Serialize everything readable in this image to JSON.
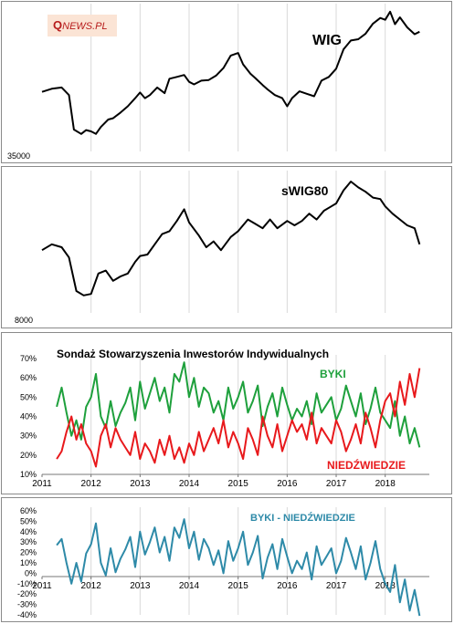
{
  "logo": {
    "q": "Q",
    "rest": "NEWS.PL"
  },
  "chart_data": [
    {
      "type": "line",
      "title": "WIG",
      "ymin_label": "35000",
      "x_range": [
        2011,
        2018.9
      ],
      "series": [
        {
          "name": "WIG",
          "color": "#000000",
          "x": [
            2011.0,
            2011.2,
            2011.4,
            2011.55,
            2011.65,
            2011.8,
            2011.9,
            2012.0,
            2012.1,
            2012.2,
            2012.35,
            2012.45,
            2012.6,
            2012.75,
            2012.9,
            2013.0,
            2013.1,
            2013.2,
            2013.35,
            2013.5,
            2013.6,
            2013.75,
            2013.9,
            2014.0,
            2014.1,
            2014.25,
            2014.4,
            2014.55,
            2014.7,
            2014.85,
            2015.0,
            2015.1,
            2015.25,
            2015.35,
            2015.5,
            2015.6,
            2015.75,
            2015.9,
            2016.0,
            2016.1,
            2016.25,
            2016.4,
            2016.55,
            2016.7,
            2016.85,
            2017.0,
            2017.15,
            2017.3,
            2017.45,
            2017.6,
            2017.75,
            2017.9,
            2018.0,
            2018.1,
            2018.2,
            2018.3,
            2018.45,
            2018.6,
            2018.7
          ],
          "values": [
            44500,
            45000,
            45200,
            44000,
            38500,
            37800,
            38400,
            38200,
            37800,
            38900,
            40100,
            40300,
            41200,
            42200,
            43500,
            44400,
            43500,
            44000,
            45200,
            44300,
            46600,
            46900,
            47200,
            46100,
            45700,
            46300,
            46400,
            47100,
            48300,
            50300,
            50700,
            48900,
            47400,
            46700,
            45600,
            44900,
            44000,
            43500,
            42200,
            43500,
            44600,
            44200,
            43800,
            46300,
            46900,
            48200,
            51300,
            52700,
            52900,
            53800,
            55400,
            56300,
            56000,
            57300,
            55300,
            56400,
            54800,
            53700,
            54100
          ]
        }
      ],
      "ylim": [
        35000,
        58000
      ]
    },
    {
      "type": "line",
      "title": "sWIG80",
      "ymin_label": "8000",
      "x_range": [
        2011,
        2018.9
      ],
      "series": [
        {
          "name": "sWIG80",
          "color": "#000000",
          "x": [
            2011.0,
            2011.2,
            2011.4,
            2011.55,
            2011.7,
            2011.85,
            2012.0,
            2012.15,
            2012.3,
            2012.45,
            2012.6,
            2012.75,
            2012.9,
            2013.0,
            2013.15,
            2013.3,
            2013.45,
            2013.6,
            2013.75,
            2013.9,
            2014.0,
            2014.2,
            2014.35,
            2014.5,
            2014.65,
            2014.85,
            2015.0,
            2015.2,
            2015.35,
            2015.5,
            2015.65,
            2015.8,
            2016.0,
            2016.15,
            2016.3,
            2016.45,
            2016.6,
            2016.75,
            2016.9,
            2017.0,
            2017.15,
            2017.3,
            2017.45,
            2017.6,
            2017.75,
            2017.9,
            2018.0,
            2018.15,
            2018.3,
            2018.45,
            2018.6,
            2018.7
          ],
          "values": [
            12300,
            12700,
            12500,
            11800,
            9500,
            9200,
            9300,
            10700,
            10900,
            10200,
            10500,
            10700,
            11500,
            11900,
            12000,
            12700,
            13400,
            13600,
            14300,
            15100,
            14200,
            13300,
            12500,
            12900,
            12300,
            13200,
            13600,
            14400,
            14100,
            13800,
            14400,
            13800,
            14300,
            14000,
            14300,
            14800,
            14400,
            15000,
            15300,
            15500,
            16400,
            17000,
            16600,
            16300,
            15900,
            15800,
            15300,
            14800,
            14400,
            14000,
            13800,
            12700
          ]
        }
      ],
      "ylim": [
        8000,
        17500
      ]
    },
    {
      "type": "line",
      "title": "Sondaż Stowarzyszenia Inwestorów Indywidualnych",
      "y_ticks": [
        "70%",
        "60%",
        "50%",
        "40%",
        "30%",
        "20%",
        "10%"
      ],
      "x_ticks": [
        "2011",
        "2012",
        "2013",
        "2014",
        "2015",
        "2016",
        "2017",
        "2018"
      ],
      "ylim": [
        10,
        70
      ],
      "x_range": [
        2011,
        2018.9
      ],
      "series": [
        {
          "name": "BYKI",
          "color": "#1ea03c",
          "x": [
            2011.3,
            2011.4,
            2011.5,
            2011.6,
            2011.7,
            2011.8,
            2011.9,
            2012.0,
            2012.1,
            2012.2,
            2012.3,
            2012.4,
            2012.5,
            2012.6,
            2012.7,
            2012.8,
            2012.9,
            2013.0,
            2013.1,
            2013.2,
            2013.3,
            2013.4,
            2013.5,
            2013.6,
            2013.7,
            2013.8,
            2013.9,
            2014.0,
            2014.1,
            2014.2,
            2014.3,
            2014.4,
            2014.5,
            2014.6,
            2014.7,
            2014.8,
            2014.9,
            2015.0,
            2015.1,
            2015.2,
            2015.3,
            2015.4,
            2015.5,
            2015.6,
            2015.7,
            2015.8,
            2015.9,
            2016.0,
            2016.1,
            2016.2,
            2016.3,
            2016.4,
            2016.5,
            2016.6,
            2016.7,
            2016.8,
            2016.9,
            2017.0,
            2017.1,
            2017.2,
            2017.3,
            2017.4,
            2017.5,
            2017.6,
            2017.7,
            2017.8,
            2017.9,
            2018.0,
            2018.1,
            2018.2,
            2018.3,
            2018.4,
            2018.5,
            2018.6,
            2018.7
          ],
          "values": [
            45,
            55,
            42,
            30,
            38,
            28,
            45,
            50,
            62,
            40,
            34,
            48,
            35,
            42,
            47,
            55,
            38,
            58,
            44,
            52,
            60,
            48,
            55,
            42,
            62,
            58,
            68,
            50,
            60,
            45,
            55,
            52,
            42,
            48,
            38,
            55,
            44,
            50,
            58,
            42,
            48,
            56,
            35,
            45,
            52,
            40,
            55,
            46,
            38,
            44,
            40,
            48,
            36,
            52,
            42,
            46,
            50,
            38,
            44,
            56,
            48,
            40,
            52,
            36,
            44,
            55,
            42,
            38,
            34,
            48,
            30,
            40,
            26,
            34,
            24
          ]
        },
        {
          "name": "NIEDŹWIEDZIE",
          "color": "#e8191c",
          "x": [
            2011.3,
            2011.4,
            2011.5,
            2011.6,
            2011.7,
            2011.8,
            2011.9,
            2012.0,
            2012.1,
            2012.2,
            2012.3,
            2012.4,
            2012.5,
            2012.6,
            2012.7,
            2012.8,
            2012.9,
            2013.0,
            2013.1,
            2013.2,
            2013.3,
            2013.4,
            2013.5,
            2013.6,
            2013.7,
            2013.8,
            2013.9,
            2014.0,
            2014.1,
            2014.2,
            2014.3,
            2014.4,
            2014.5,
            2014.6,
            2014.7,
            2014.8,
            2014.9,
            2015.0,
            2015.1,
            2015.2,
            2015.3,
            2015.4,
            2015.5,
            2015.6,
            2015.7,
            2015.8,
            2015.9,
            2016.0,
            2016.1,
            2016.2,
            2016.3,
            2016.4,
            2016.5,
            2016.6,
            2016.7,
            2016.8,
            2016.9,
            2017.0,
            2017.1,
            2017.2,
            2017.3,
            2017.4,
            2017.5,
            2017.6,
            2017.7,
            2017.8,
            2017.9,
            2018.0,
            2018.1,
            2018.2,
            2018.3,
            2018.4,
            2018.5,
            2018.6,
            2018.7
          ],
          "values": [
            18,
            22,
            32,
            40,
            28,
            36,
            26,
            22,
            14,
            30,
            36,
            24,
            34,
            28,
            24,
            20,
            32,
            18,
            26,
            22,
            16,
            28,
            20,
            30,
            18,
            24,
            16,
            26,
            20,
            32,
            22,
            28,
            34,
            26,
            38,
            24,
            32,
            26,
            18,
            34,
            28,
            20,
            40,
            30,
            24,
            36,
            22,
            30,
            38,
            32,
            36,
            28,
            42,
            26,
            34,
            30,
            26,
            38,
            32,
            22,
            28,
            36,
            26,
            42,
            34,
            24,
            38,
            48,
            52,
            40,
            58,
            46,
            62,
            50,
            65
          ]
        }
      ]
    },
    {
      "type": "line",
      "title": "BYKI - NIEDŹWIEDZIE",
      "y_ticks": [
        "60%",
        "50%",
        "40%",
        "30%",
        "20%",
        "10%",
        "0%",
        "-10%",
        "-20%",
        "-30%",
        "-40%"
      ],
      "x_ticks": [
        "2011",
        "2012",
        "2013",
        "2014",
        "2015",
        "2016",
        "2017",
        "2018"
      ],
      "ylim": [
        -40,
        60
      ],
      "x_range": [
        2011,
        2018.9
      ],
      "series": [
        {
          "name": "BYKI - NIEDŹWIEDZIE",
          "color": "#2e8aa8",
          "x": [
            2011.3,
            2011.4,
            2011.5,
            2011.6,
            2011.7,
            2011.8,
            2011.9,
            2012.0,
            2012.1,
            2012.2,
            2012.3,
            2012.4,
            2012.5,
            2012.6,
            2012.7,
            2012.8,
            2012.9,
            2013.0,
            2013.1,
            2013.2,
            2013.3,
            2013.4,
            2013.5,
            2013.6,
            2013.7,
            2013.8,
            2013.9,
            2014.0,
            2014.1,
            2014.2,
            2014.3,
            2014.4,
            2014.5,
            2014.6,
            2014.7,
            2014.8,
            2014.9,
            2015.0,
            2015.1,
            2015.2,
            2015.3,
            2015.4,
            2015.5,
            2015.6,
            2015.7,
            2015.8,
            2015.9,
            2016.0,
            2016.1,
            2016.2,
            2016.3,
            2016.4,
            2016.5,
            2016.6,
            2016.7,
            2016.8,
            2016.9,
            2017.0,
            2017.1,
            2017.2,
            2017.3,
            2017.4,
            2017.5,
            2017.6,
            2017.7,
            2017.8,
            2017.9,
            2018.0,
            2018.1,
            2018.2,
            2018.3,
            2018.4,
            2018.5,
            2018.6,
            2018.7
          ],
          "values": [
            27,
            33,
            10,
            -10,
            10,
            -8,
            19,
            28,
            48,
            10,
            -2,
            24,
            1,
            14,
            23,
            35,
            6,
            40,
            18,
            30,
            44,
            20,
            35,
            12,
            44,
            34,
            52,
            24,
            40,
            13,
            33,
            24,
            8,
            22,
            0,
            31,
            12,
            24,
            40,
            8,
            20,
            36,
            -5,
            15,
            28,
            4,
            33,
            16,
            0,
            12,
            4,
            20,
            -6,
            26,
            8,
            16,
            24,
            0,
            12,
            34,
            20,
            4,
            26,
            -6,
            10,
            31,
            4,
            -10,
            -18,
            8,
            -28,
            -6,
            -36,
            -16,
            -41
          ]
        }
      ]
    }
  ]
}
